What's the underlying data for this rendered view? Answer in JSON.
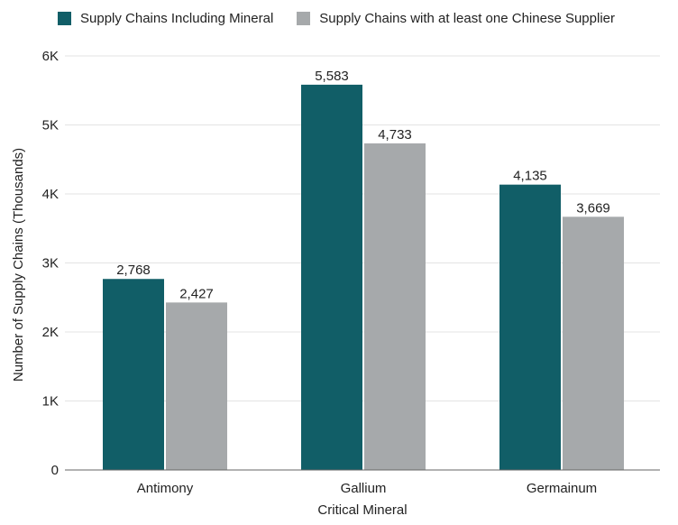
{
  "chart_data": {
    "type": "bar",
    "title": "",
    "xlabel": "Critical Mineral",
    "ylabel": "Number of Supply Chains (Thousands)",
    "categories": [
      "Antimony",
      "Gallium",
      "Germainum"
    ],
    "series": [
      {
        "name": "Supply Chains Including Mineral",
        "color": "#115e67",
        "values": [
          2768,
          5583,
          4135
        ],
        "labels": [
          "2,768",
          "5,583",
          "4,135"
        ]
      },
      {
        "name": "Supply Chains with at least one Chinese Supplier",
        "color": "#a6a9ab",
        "values": [
          2427,
          4733,
          3669
        ],
        "labels": [
          "2,427",
          "4,733",
          "3,669"
        ]
      }
    ],
    "ylim": [
      0,
      6000
    ],
    "yticks": [
      0,
      1000,
      2000,
      3000,
      4000,
      5000,
      6000
    ],
    "ytick_labels": [
      "0",
      "1K",
      "2K",
      "3K",
      "4K",
      "5K",
      "6K"
    ],
    "grid": true,
    "legend_position": "top"
  }
}
